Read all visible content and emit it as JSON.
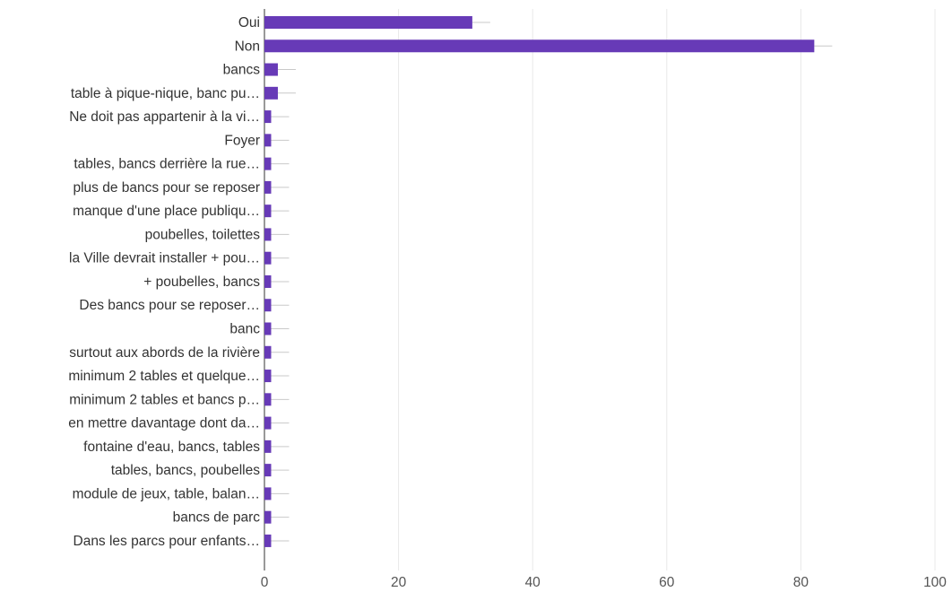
{
  "chart_data": {
    "type": "bar",
    "orientation": "horizontal",
    "categories": [
      "Oui",
      "Non",
      "bancs",
      "table à pique-nique, banc pu…",
      "Ne doit pas appartenir à la vi…",
      "Foyer",
      "tables, bancs derrière la rue…",
      "plus de bancs pour se reposer",
      "manque d'une place publiqu…",
      "poubelles, toilettes",
      "la Ville devrait installer + pou…",
      "+ poubelles, bancs",
      "Des bancs pour se reposer…",
      "banc",
      "surtout aux abords de la rivière",
      "minimum 2 tables et quelque…",
      "minimum 2 tables et bancs p…",
      "en mettre davantage dont da…",
      "fontaine d'eau, bancs, tables",
      "tables, bancs, poubelles",
      "module de jeux, table, balan…",
      "bancs de parc",
      "Dans les parcs pour enfants…"
    ],
    "values": [
      31,
      82,
      2,
      2,
      1,
      1,
      1,
      1,
      1,
      1,
      1,
      1,
      1,
      1,
      1,
      1,
      1,
      1,
      1,
      1,
      1,
      1,
      1
    ],
    "xlim": [
      0,
      100
    ],
    "xticks": [
      "0",
      "20",
      "40",
      "60",
      "80",
      "100"
    ],
    "grid": true,
    "colors": {
      "bar": "#673ab7",
      "grid": "#e8e8e8",
      "axis": "#333333",
      "whisker": "#c9c9c9"
    }
  }
}
